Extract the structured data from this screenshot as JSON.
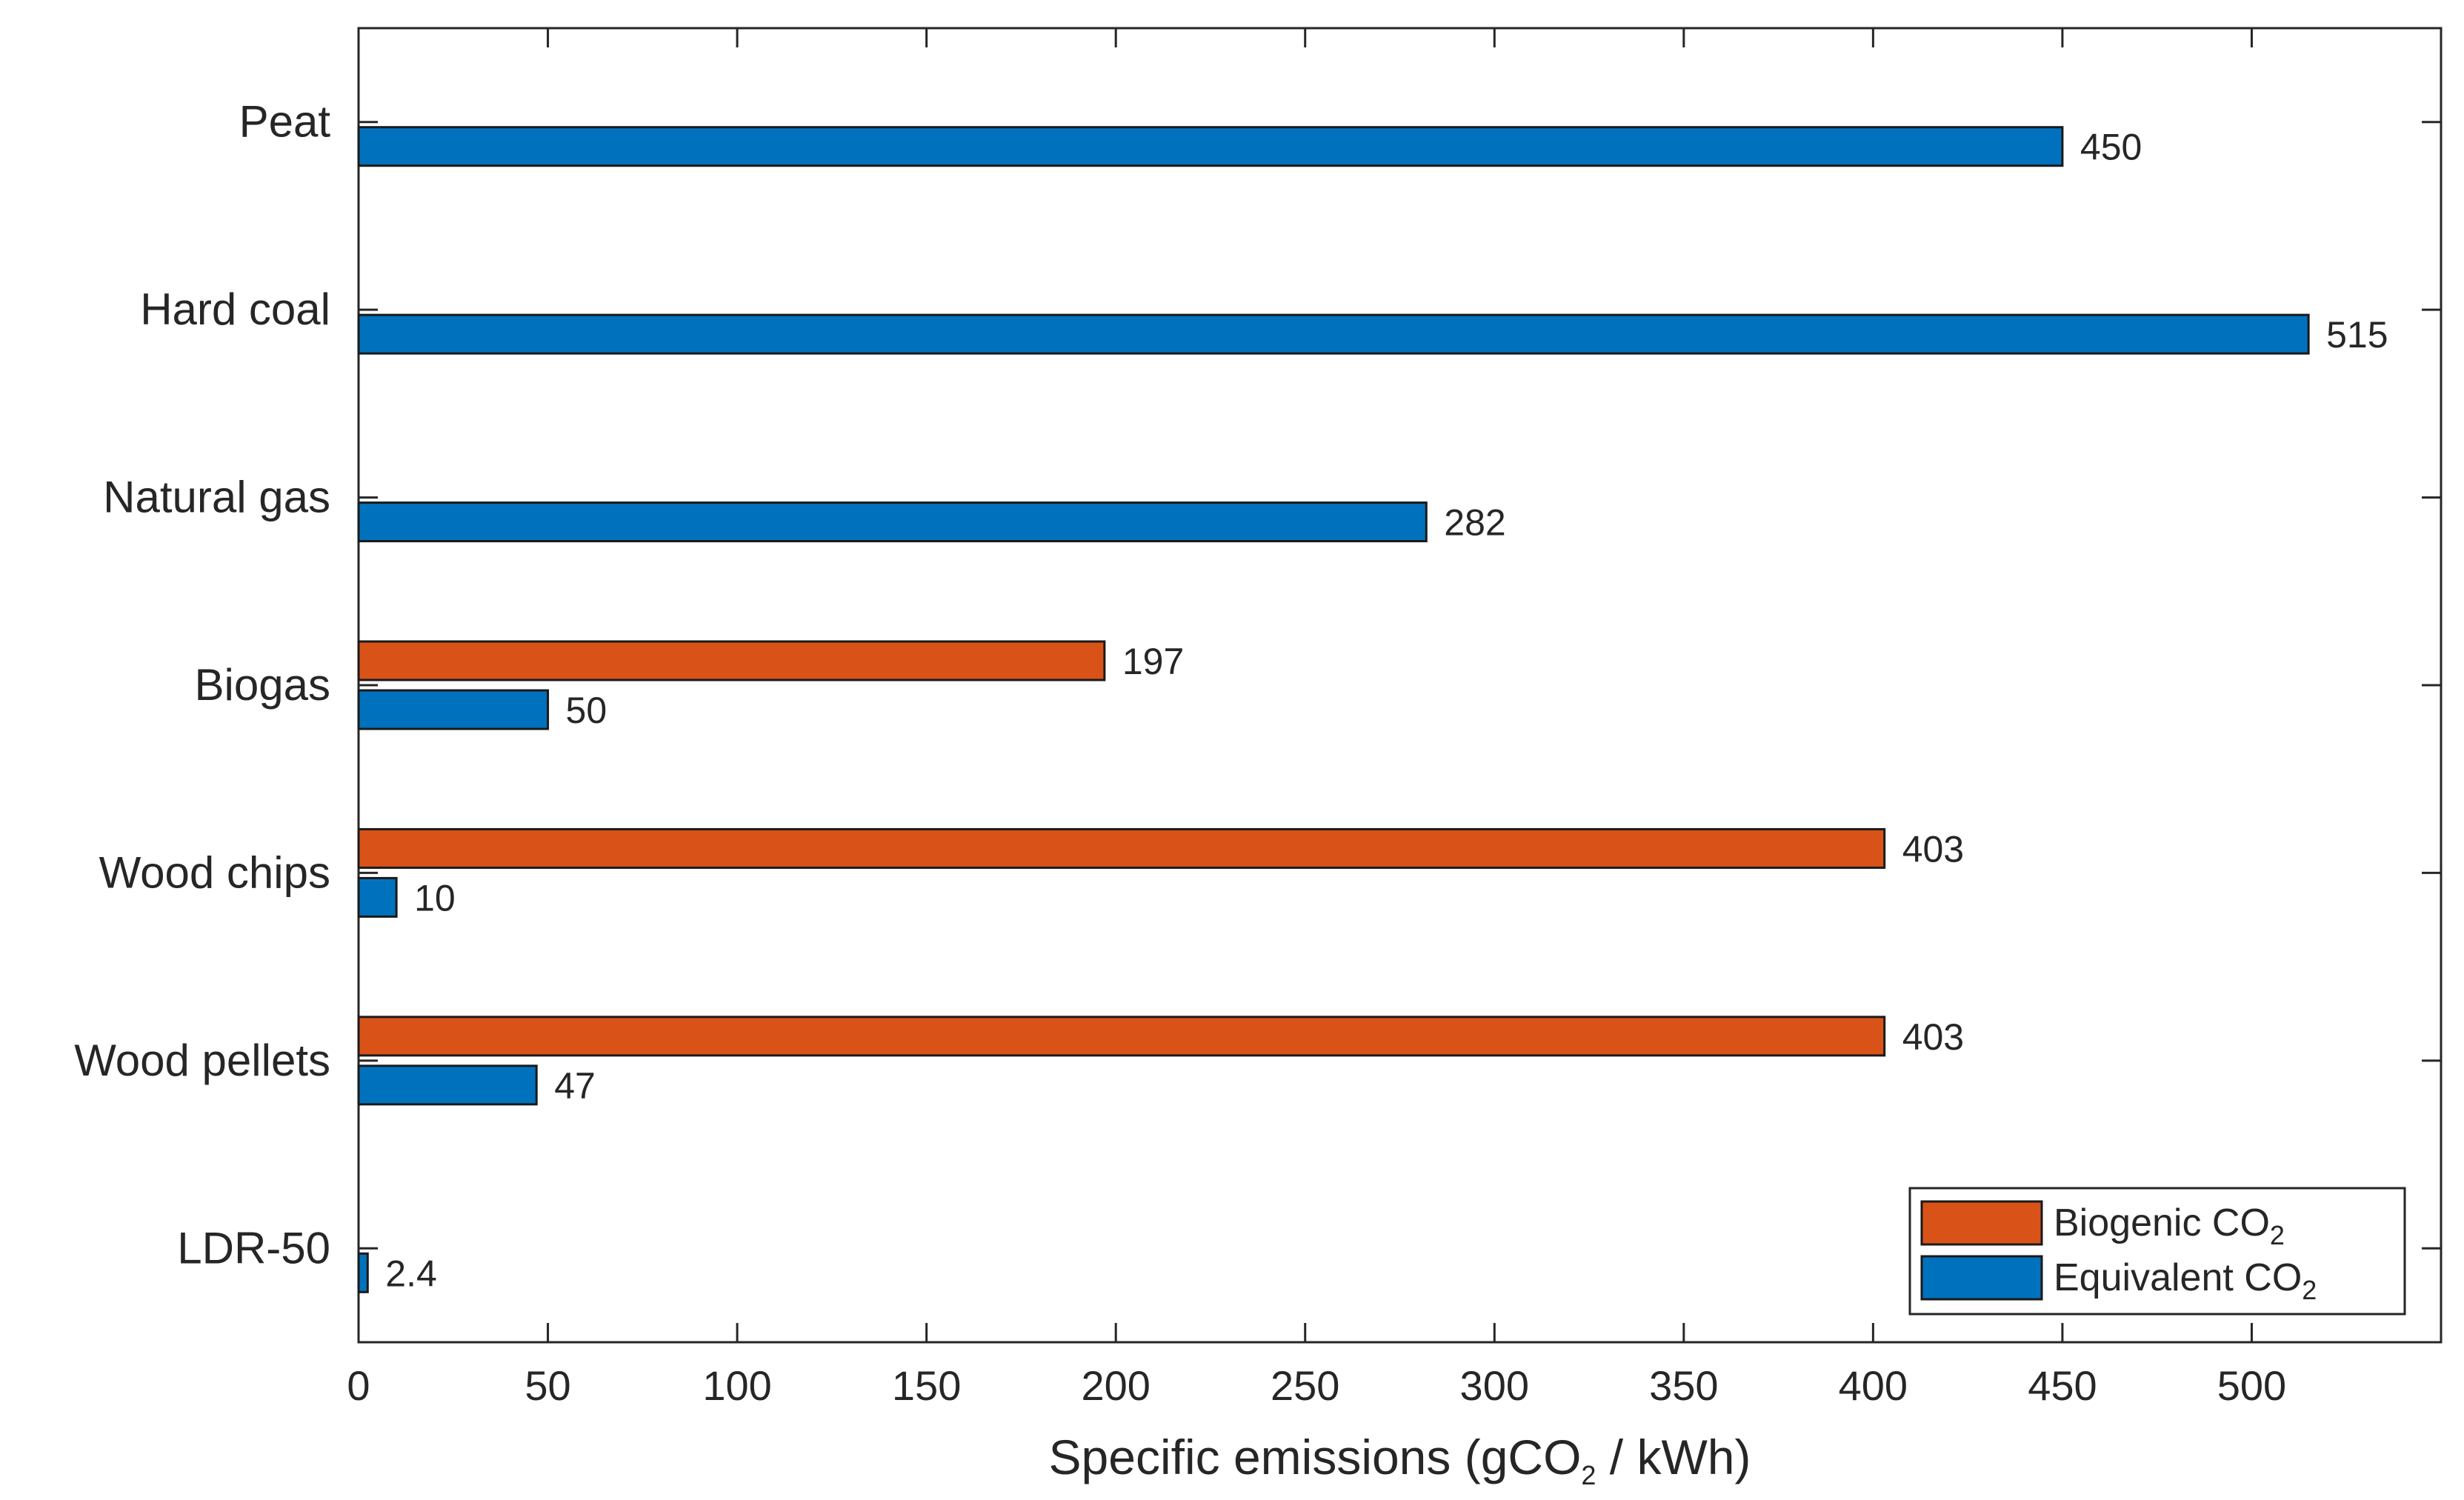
{
  "chart_data": {
    "type": "bar",
    "orientation": "horizontal",
    "categories": [
      "Peat",
      "Hard coal",
      "Natural gas",
      "Biogas",
      "Wood chips",
      "Wood pellets",
      "LDR-50"
    ],
    "series": [
      {
        "name": "Biogenic CO2",
        "legend_main": "Biogenic CO",
        "legend_sub": "2",
        "color": "#d95319",
        "values": [
          null,
          null,
          null,
          197,
          403,
          403,
          null
        ],
        "labels": [
          null,
          null,
          null,
          "197",
          "403",
          "403",
          null
        ]
      },
      {
        "name": "Equivalent CO2",
        "legend_main": "Equivalent CO",
        "legend_sub": "2",
        "color": "#0072bd",
        "values": [
          450,
          515,
          282,
          50,
          10,
          47,
          2.4
        ],
        "labels": [
          "450",
          "515",
          "282",
          "50",
          "10",
          "47",
          "2.4"
        ]
      }
    ],
    "xlabel_parts": [
      "Specific emissions (gCO",
      "2",
      " / kWh)"
    ],
    "ylabel": "",
    "xlim": [
      0,
      550
    ],
    "xticks": [
      0,
      50,
      100,
      150,
      200,
      250,
      300,
      350,
      400,
      450,
      500
    ],
    "xtick_labels": [
      "0",
      "50",
      "100",
      "150",
      "200",
      "250",
      "300",
      "350",
      "400",
      "450",
      "500"
    ],
    "grid": false,
    "legend_position": "bottom-right"
  }
}
